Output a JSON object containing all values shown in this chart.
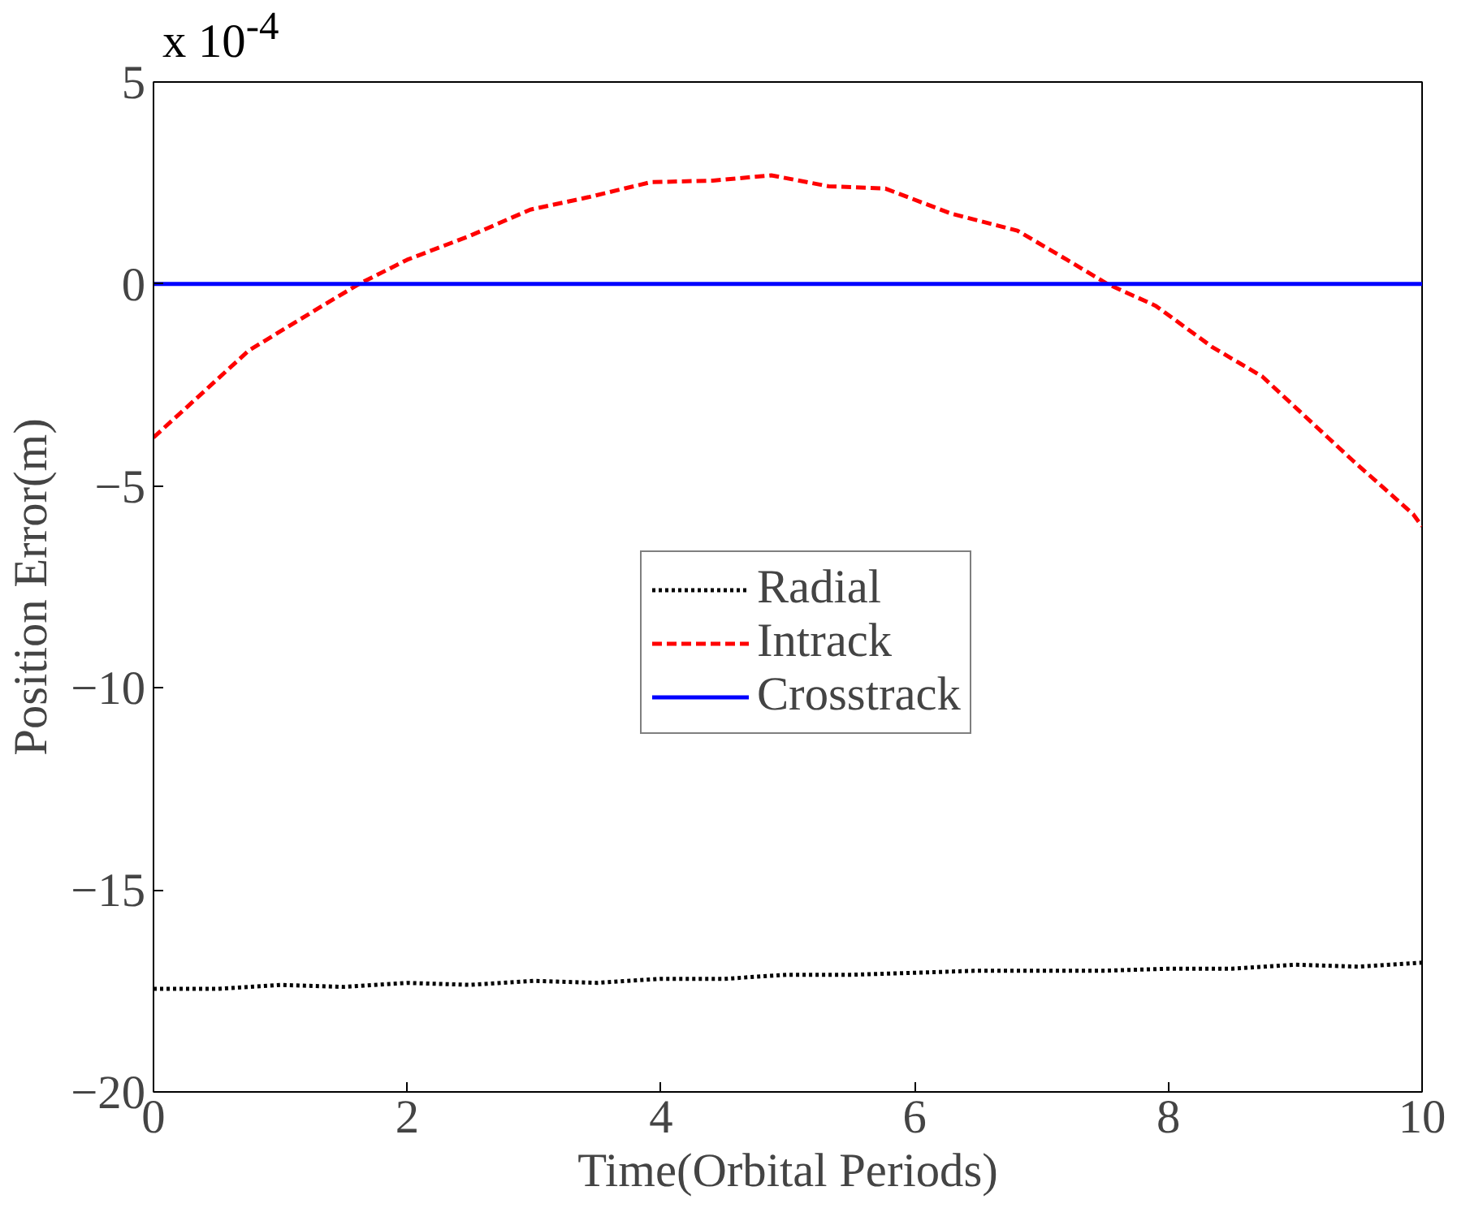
{
  "chart_data": {
    "type": "line",
    "xlabel": "Time(Orbital Periods)",
    "ylabel": "Position Error(m)",
    "annotations": [
      "x 10$^{-4}$"
    ],
    "xlim": [
      0,
      10
    ],
    "xticks": [
      0,
      2,
      4,
      6,
      8,
      10
    ],
    "ylim": [
      -20,
      5
    ],
    "yticks": [
      -20,
      -15,
      -10,
      -5,
      0,
      5
    ],
    "grid": false,
    "legend": "center",
    "series": [
      {
        "name": "Radial",
        "color": "#000000",
        "line_style": "dotted",
        "x": [
          0,
          0.5,
          1,
          1.5,
          2,
          2.5,
          3,
          3.5,
          4,
          4.5,
          5,
          5.5,
          6,
          6.5,
          7,
          7.5,
          8,
          8.5,
          9,
          9.5,
          10
        ],
        "values": [
          -17.45,
          -17.45,
          -17.35,
          -17.4,
          -17.3,
          -17.35,
          -17.25,
          -17.3,
          -17.2,
          -17.2,
          -17.1,
          -17.1,
          -17.05,
          -17.0,
          -17.0,
          -17.0,
          -16.95,
          -16.95,
          -16.85,
          -16.9,
          -16.8
        ]
      },
      {
        "name": "Intrack",
        "color": "#ff0000",
        "line_style": "dashed",
        "x": [
          0,
          0.35,
          0.75,
          1.3,
          1.62,
          2.0,
          2.5,
          2.97,
          3.43,
          3.92,
          4.41,
          4.87,
          5.32,
          5.77,
          6.29,
          6.81,
          7.2,
          7.52,
          7.9,
          8.35,
          8.74,
          9.13,
          9.45,
          9.93,
          10
        ],
        "values": [
          -3.8,
          -2.8,
          -1.65,
          -0.6,
          0.0,
          0.6,
          1.2,
          1.84,
          2.15,
          2.52,
          2.56,
          2.69,
          2.42,
          2.36,
          1.74,
          1.32,
          0.6,
          0.0,
          -0.54,
          -1.57,
          -2.29,
          -3.43,
          -4.36,
          -5.7,
          -6.0
        ]
      },
      {
        "name": "Crosstrack",
        "color": "#0000ff",
        "line_style": "solid",
        "x": [
          0,
          10
        ],
        "values": [
          0,
          0
        ]
      }
    ]
  }
}
